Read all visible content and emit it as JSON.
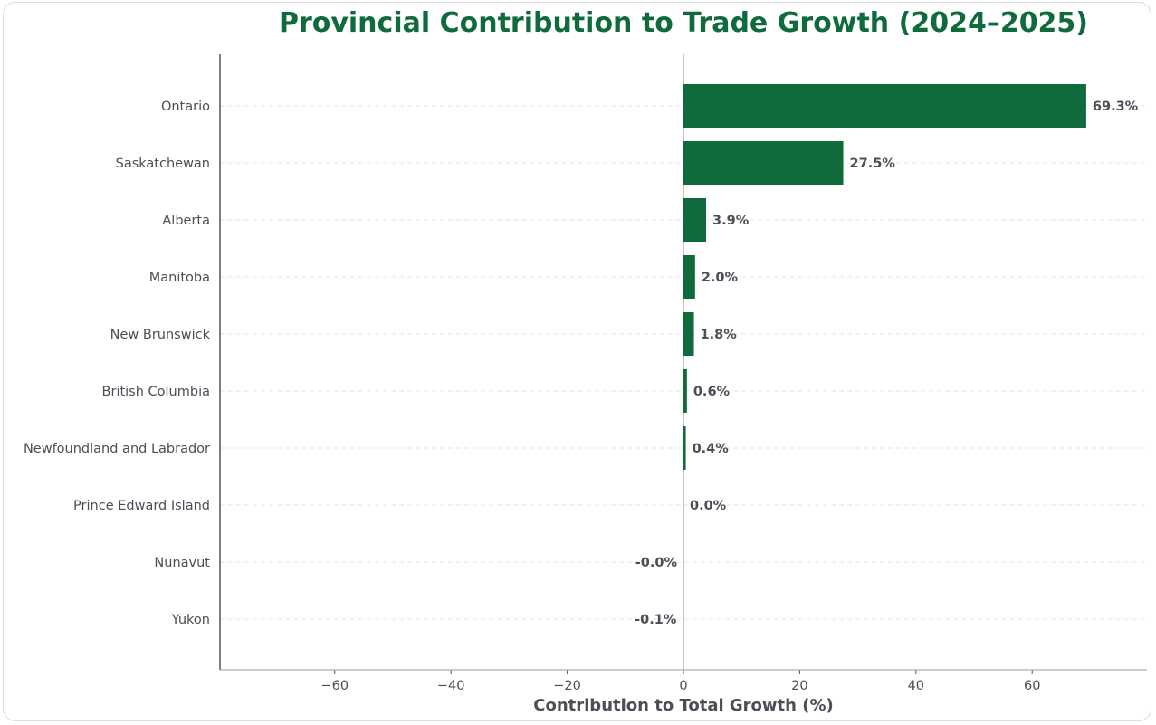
{
  "chart_data": {
    "type": "bar",
    "orientation": "horizontal",
    "title": "Provincial Contribution to Trade Growth (2024–2025)",
    "xlabel": "Contribution to Total Growth (%)",
    "ylabel": "",
    "xlim": [
      -79.5,
      79.5
    ],
    "xticks": [
      -60,
      -40,
      -20,
      0,
      20,
      40,
      60
    ],
    "xtick_labels": [
      "−60",
      "−40",
      "−20",
      "0",
      "20",
      "40",
      "60"
    ],
    "categories": [
      "Ontario",
      "Saskatchewan",
      "Alberta",
      "Manitoba",
      "New Brunswick",
      "British Columbia",
      "Newfoundland and Labrador",
      "Prince Edward Island",
      "Nunavut",
      "Yukon"
    ],
    "values": [
      69.3,
      27.5,
      3.9,
      2.0,
      1.8,
      0.6,
      0.4,
      0.0,
      -0.0,
      -0.1
    ],
    "value_labels": [
      "69.3%",
      "27.5%",
      "3.9%",
      "2.0%",
      "1.8%",
      "0.6%",
      "0.4%",
      "0.0%",
      "-0.0%",
      "-0.1%"
    ],
    "grid": "horizontal dashed",
    "colors": {
      "bar": "#0f6b3c",
      "title": "#0f6b3c",
      "text": "#4a4f57",
      "axis": "#555555",
      "zero_line": "#b0b0b0",
      "grid": "#e6e6e6"
    }
  }
}
